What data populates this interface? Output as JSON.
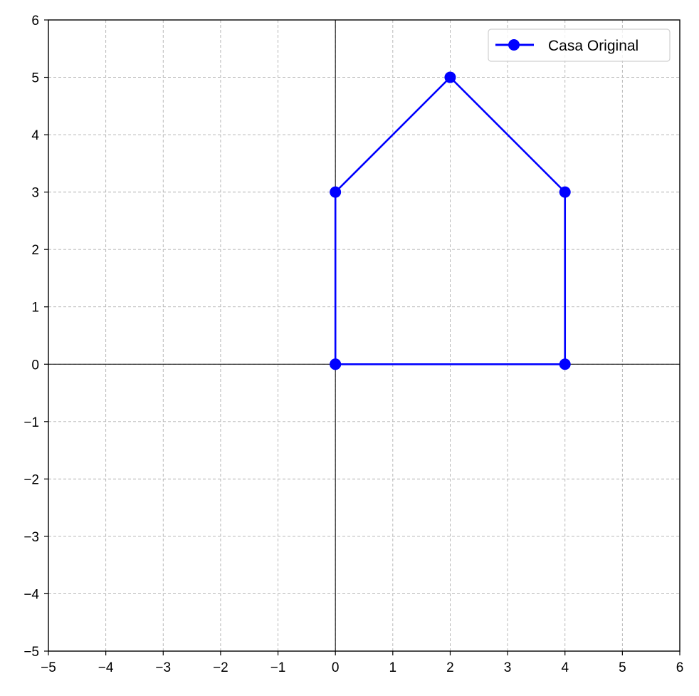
{
  "chart_data": {
    "type": "line",
    "title": "",
    "xlabel": "",
    "ylabel": "",
    "xlim": [
      -5,
      6
    ],
    "ylim": [
      -5,
      6
    ],
    "xticks": [
      "−5",
      "−4",
      "−3",
      "−2",
      "−1",
      "0",
      "1",
      "2",
      "3",
      "4",
      "5",
      "6"
    ],
    "yticks": [
      "−5",
      "−4",
      "−3",
      "−2",
      "−1",
      "0",
      "1",
      "2",
      "3",
      "4",
      "5",
      "6"
    ],
    "grid": true,
    "legend_position": "upper-right",
    "axes_zero_lines": true,
    "series": [
      {
        "name": "Casa Original",
        "color": "#0000ff",
        "marker": "circle",
        "x": [
          0,
          4,
          4,
          2,
          0,
          0
        ],
        "y": [
          0,
          0,
          3,
          5,
          3,
          0
        ]
      }
    ]
  }
}
